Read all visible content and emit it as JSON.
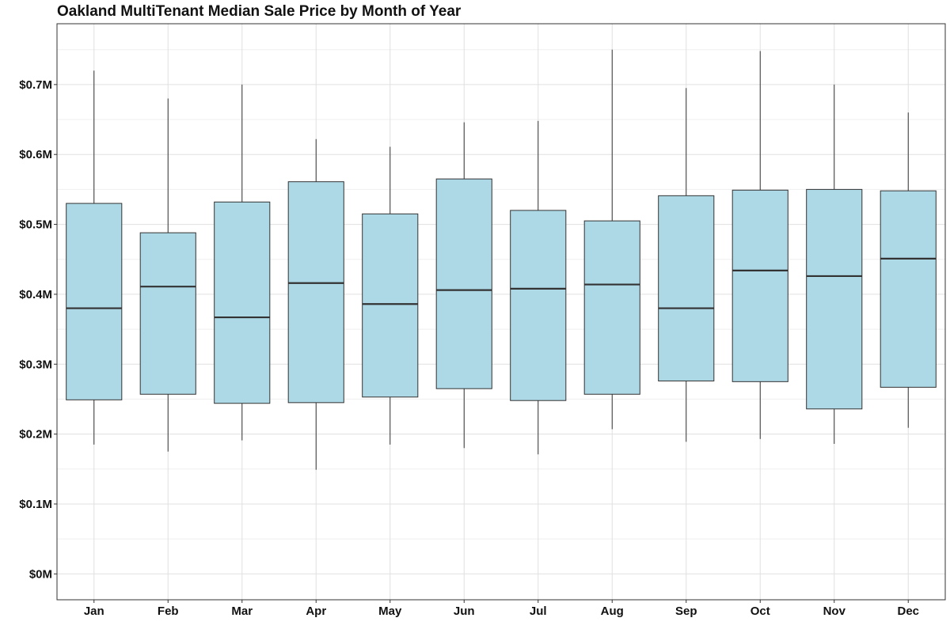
{
  "chart_data": {
    "type": "box",
    "title": "Oakland MultiTenant Median Sale Price by Month of Year",
    "xlabel": "",
    "ylabel": "",
    "categories": [
      "Jan",
      "Feb",
      "Mar",
      "Apr",
      "May",
      "Jun",
      "Jul",
      "Aug",
      "Sep",
      "Oct",
      "Nov",
      "Dec"
    ],
    "ylim": [
      -0.037,
      0.787
    ],
    "y_unit": "millions of dollars",
    "y_ticks": [
      0,
      0.1,
      0.2,
      0.3,
      0.4,
      0.5,
      0.6,
      0.7
    ],
    "y_tick_labels": [
      "$0M",
      "$0.1M",
      "$0.2M",
      "$0.3M",
      "$0.4M",
      "$0.5M",
      "$0.6M",
      "$0.7M"
    ],
    "grid": true,
    "legend": "none",
    "box_fill_color": "#add8e6",
    "box_stroke_color": "#333333",
    "series": [
      {
        "boxes": [
          {
            "category": "Jan",
            "whisker_low": 0.185,
            "q1": 0.249,
            "median": 0.38,
            "q3": 0.53,
            "whisker_high": 0.72
          },
          {
            "category": "Feb",
            "whisker_low": 0.175,
            "q1": 0.257,
            "median": 0.411,
            "q3": 0.488,
            "whisker_high": 0.68
          },
          {
            "category": "Mar",
            "whisker_low": 0.191,
            "q1": 0.244,
            "median": 0.367,
            "q3": 0.532,
            "whisker_high": 0.7
          },
          {
            "category": "Apr",
            "whisker_low": 0.149,
            "q1": 0.245,
            "median": 0.416,
            "q3": 0.561,
            "whisker_high": 0.622
          },
          {
            "category": "May",
            "whisker_low": 0.185,
            "q1": 0.253,
            "median": 0.386,
            "q3": 0.515,
            "whisker_high": 0.611
          },
          {
            "category": "Jun",
            "whisker_low": 0.18,
            "q1": 0.265,
            "median": 0.406,
            "q3": 0.565,
            "whisker_high": 0.646
          },
          {
            "category": "Jul",
            "whisker_low": 0.171,
            "q1": 0.248,
            "median": 0.408,
            "q3": 0.52,
            "whisker_high": 0.648
          },
          {
            "category": "Aug",
            "whisker_low": 0.207,
            "q1": 0.257,
            "median": 0.414,
            "q3": 0.505,
            "whisker_high": 0.75
          },
          {
            "category": "Sep",
            "whisker_low": 0.189,
            "q1": 0.276,
            "median": 0.38,
            "q3": 0.541,
            "whisker_high": 0.695
          },
          {
            "category": "Oct",
            "whisker_low": 0.193,
            "q1": 0.275,
            "median": 0.434,
            "q3": 0.549,
            "whisker_high": 0.748
          },
          {
            "category": "Nov",
            "whisker_low": 0.186,
            "q1": 0.236,
            "median": 0.426,
            "q3": 0.55,
            "whisker_high": 0.7
          },
          {
            "category": "Dec",
            "whisker_low": 0.209,
            "q1": 0.267,
            "median": 0.451,
            "q3": 0.548,
            "whisker_high": 0.66
          }
        ]
      }
    ]
  }
}
